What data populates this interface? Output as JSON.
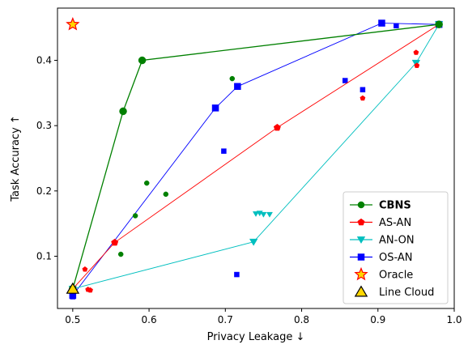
{
  "chart_data": {
    "type": "scatter",
    "title": "",
    "xlabel": "Privacy Leakage ↓",
    "ylabel": "Task Accuracy ↑",
    "xlim": [
      0.48,
      1.0
    ],
    "ylim": [
      0.02,
      0.48
    ],
    "xticks": [
      "0.5",
      "0.6",
      "0.7",
      "0.8",
      "0.9",
      "1.0"
    ],
    "xtick_values": [
      0.5,
      0.6,
      0.7,
      0.8,
      0.9,
      1.0
    ],
    "yticks": [
      "0.1",
      "0.2",
      "0.3",
      "0.4"
    ],
    "ytick_values": [
      0.1,
      0.2,
      0.3,
      0.4
    ],
    "grid": false,
    "legend_position": "bottom-right",
    "series": [
      {
        "name": "CBNS",
        "color": "#008000",
        "marker": "circle",
        "bold_label": true,
        "frontier": [
          [
            0.5,
            0.05
          ],
          [
            0.566,
            0.322
          ],
          [
            0.591,
            0.4
          ],
          [
            0.98,
            0.455
          ]
        ],
        "scatter": [
          [
            0.709,
            0.372
          ],
          [
            0.597,
            0.212
          ],
          [
            0.622,
            0.195
          ],
          [
            0.582,
            0.162
          ],
          [
            0.563,
            0.103
          ]
        ]
      },
      {
        "name": "AS-AN",
        "color": "#ff0000",
        "marker": "pentagon",
        "frontier": [
          [
            0.5,
            0.05
          ],
          [
            0.555,
            0.121
          ],
          [
            0.768,
            0.297
          ],
          [
            0.98,
            0.455
          ]
        ],
        "scatter": [
          [
            0.95,
            0.412
          ],
          [
            0.951,
            0.392
          ],
          [
            0.88,
            0.342
          ],
          [
            0.516,
            0.08
          ],
          [
            0.52,
            0.049
          ],
          [
            0.523,
            0.048
          ]
        ]
      },
      {
        "name": "AN-ON",
        "color": "#00bfbf",
        "marker": "triangle-down",
        "frontier": [
          [
            0.5,
            0.05
          ],
          [
            0.737,
            0.122
          ],
          [
            0.95,
            0.396
          ],
          [
            0.98,
            0.455
          ]
        ],
        "scatter": [
          [
            0.74,
            0.165
          ],
          [
            0.745,
            0.166
          ],
          [
            0.75,
            0.164
          ],
          [
            0.758,
            0.164
          ]
        ]
      },
      {
        "name": "OS-AN",
        "color": "#0000ff",
        "marker": "square",
        "frontier": [
          [
            0.5,
            0.04
          ],
          [
            0.687,
            0.327
          ],
          [
            0.716,
            0.36
          ],
          [
            0.905,
            0.457
          ],
          [
            0.98,
            0.455
          ]
        ],
        "scatter": [
          [
            0.924,
            0.453
          ],
          [
            0.857,
            0.369
          ],
          [
            0.88,
            0.355
          ],
          [
            0.698,
            0.261
          ],
          [
            0.715,
            0.072
          ],
          [
            0.5,
            0.038
          ]
        ]
      },
      {
        "name": "Oracle",
        "color": "#ff0000",
        "face": "#ffd700",
        "marker": "star",
        "points": [
          [
            0.5,
            0.455
          ]
        ]
      },
      {
        "name": "Line Cloud",
        "color": "#000000",
        "face": "#ffd700",
        "marker": "triangle-up",
        "points": [
          [
            0.5,
            0.05
          ]
        ]
      }
    ]
  }
}
